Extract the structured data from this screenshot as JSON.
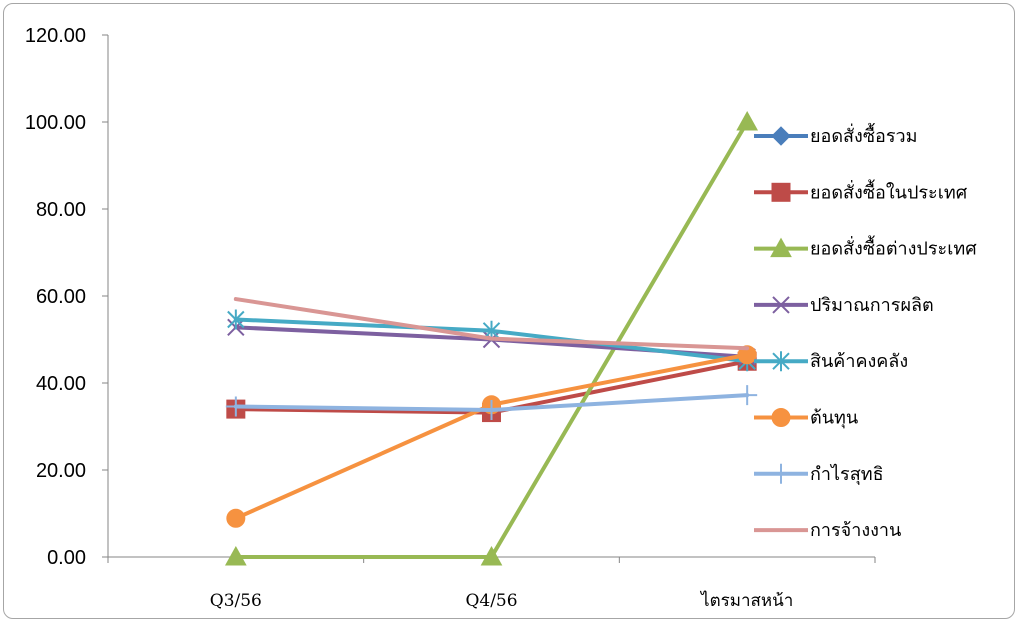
{
  "chart_data": {
    "type": "line",
    "title": "",
    "xlabel": "",
    "ylabel": "",
    "categories": [
      "Q3/56",
      "Q4/56",
      "ไตรมาสหน้า"
    ],
    "ylim": [
      0,
      120
    ],
    "yticks": [
      "0.00",
      "20.00",
      "40.00",
      "60.00",
      "80.00",
      "100.00",
      "120.00"
    ],
    "grid": false,
    "legend_position": "right",
    "series": [
      {
        "name": "ยอดสั่งซื้อรวม",
        "color": "#4a7ebb",
        "marker": "diamond",
        "values": [
          null,
          null,
          null
        ]
      },
      {
        "name": "ยอดสั่งซื้อในประเทศ",
        "color": "#be4b48",
        "marker": "square",
        "values": [
          34.0,
          33.2,
          45.0
        ]
      },
      {
        "name": "ยอดสั่งซื้อต่างประเทศ",
        "color": "#98b954",
        "marker": "triangle",
        "values": [
          0.0,
          0.0,
          100.0
        ]
      },
      {
        "name": "ปริมาณการผลิต",
        "color": "#7d60a0",
        "marker": "x",
        "values": [
          52.8,
          50.0,
          46.0
        ]
      },
      {
        "name": "สินค้าคงคลัง",
        "color": "#46aac5",
        "marker": "asterisk",
        "values": [
          54.6,
          52.0,
          45.0
        ]
      },
      {
        "name": "ต้นทุน",
        "color": "#f69240",
        "marker": "circle",
        "values": [
          8.9,
          35.0,
          46.5
        ]
      },
      {
        "name": "กำไรสุทธิ",
        "color": "#8eb3e0",
        "marker": "plus",
        "values": [
          34.6,
          33.8,
          37.2
        ]
      },
      {
        "name": "การจ้างงาน",
        "color": "#d99694",
        "marker": "none",
        "values": [
          59.3,
          50.2,
          48.0
        ]
      }
    ]
  }
}
